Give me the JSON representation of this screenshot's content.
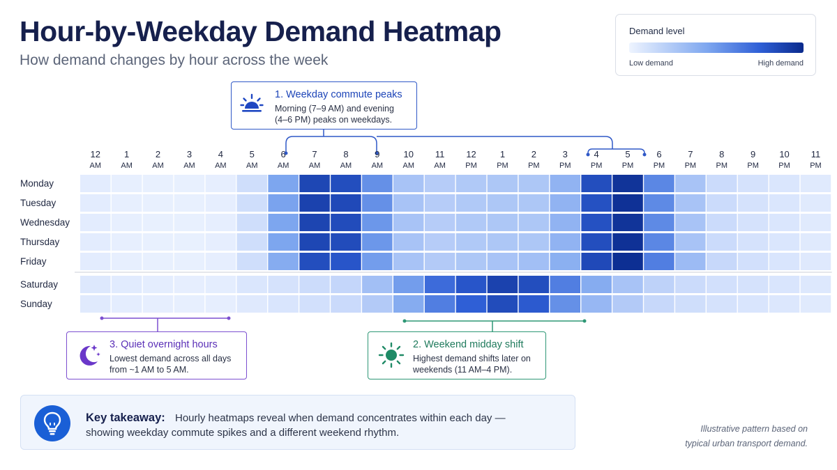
{
  "title": "Hour-by-Weekday Demand Heatmap",
  "subtitle": "How demand changes by hour across the week",
  "legend": {
    "title": "Demand level",
    "low_label": "Low demand",
    "high_label": "High demand",
    "color_low": "#eef4ff",
    "color_high": "#0a2a8c"
  },
  "callouts": {
    "weekday": {
      "title": "1. Weekday commute peaks",
      "line1": "Morning (7–9 AM) and evening",
      "line2": "(4–6 PM) peaks on weekdays.",
      "icon": "sunrise-icon",
      "color": "#2f58c7"
    },
    "weekend": {
      "title": "2. Weekend midday shift",
      "line1": "Highest demand shifts later on",
      "line2": "weekends (11 AM–4 PM).",
      "icon": "sun-icon",
      "color": "#2e9775"
    },
    "overnight": {
      "title": "3. Quiet overnight hours",
      "line1": "Lowest demand across all days",
      "line2": "from ~1 AM to 5 AM.",
      "icon": "moon-icon",
      "color": "#7c4fd0"
    }
  },
  "takeaway": {
    "label": "Key takeaway:",
    "line1": "Hourly heatmaps reveal when demand concentrates within each day —",
    "line2": "showing weekday commute spikes and a different weekend rhythm.",
    "icon": "lightbulb-icon"
  },
  "footnote": {
    "line1": "Illustrative pattern based on",
    "line2": "typical urban transport demand."
  },
  "chart_data": {
    "type": "heatmap",
    "x": [
      [
        "12",
        "AM"
      ],
      [
        "1",
        "AM"
      ],
      [
        "2",
        "AM"
      ],
      [
        "3",
        "AM"
      ],
      [
        "4",
        "AM"
      ],
      [
        "5",
        "AM"
      ],
      [
        "6",
        "AM"
      ],
      [
        "7",
        "AM"
      ],
      [
        "8",
        "AM"
      ],
      [
        "9",
        "AM"
      ],
      [
        "10",
        "AM"
      ],
      [
        "11",
        "AM"
      ],
      [
        "12",
        "PM"
      ],
      [
        "1",
        "PM"
      ],
      [
        "2",
        "PM"
      ],
      [
        "3",
        "PM"
      ],
      [
        "4",
        "PM"
      ],
      [
        "5",
        "PM"
      ],
      [
        "6",
        "PM"
      ],
      [
        "7",
        "PM"
      ],
      [
        "8",
        "PM"
      ],
      [
        "9",
        "PM"
      ],
      [
        "10",
        "PM"
      ],
      [
        "11",
        "PM"
      ]
    ],
    "y": [
      "Monday",
      "Tuesday",
      "Wednesday",
      "Thursday",
      "Friday",
      "Saturday",
      "Sunday"
    ],
    "values": [
      [
        0.08,
        0.05,
        0.04,
        0.04,
        0.06,
        0.22,
        0.55,
        0.88,
        0.85,
        0.62,
        0.4,
        0.35,
        0.37,
        0.38,
        0.38,
        0.48,
        0.85,
        0.96,
        0.65,
        0.4,
        0.25,
        0.18,
        0.14,
        0.1
      ],
      [
        0.08,
        0.05,
        0.04,
        0.04,
        0.06,
        0.22,
        0.56,
        0.9,
        0.87,
        0.62,
        0.4,
        0.35,
        0.37,
        0.38,
        0.38,
        0.48,
        0.84,
        0.97,
        0.64,
        0.4,
        0.25,
        0.18,
        0.14,
        0.1
      ],
      [
        0.08,
        0.05,
        0.04,
        0.04,
        0.06,
        0.22,
        0.55,
        0.89,
        0.86,
        0.6,
        0.4,
        0.35,
        0.37,
        0.38,
        0.38,
        0.48,
        0.84,
        0.96,
        0.64,
        0.4,
        0.25,
        0.18,
        0.14,
        0.1
      ],
      [
        0.08,
        0.05,
        0.04,
        0.04,
        0.06,
        0.22,
        0.55,
        0.88,
        0.86,
        0.6,
        0.4,
        0.35,
        0.37,
        0.38,
        0.38,
        0.48,
        0.85,
        0.97,
        0.65,
        0.4,
        0.25,
        0.18,
        0.14,
        0.1
      ],
      [
        0.08,
        0.05,
        0.04,
        0.04,
        0.06,
        0.22,
        0.52,
        0.85,
        0.82,
        0.58,
        0.4,
        0.36,
        0.38,
        0.4,
        0.42,
        0.5,
        0.87,
        0.98,
        0.68,
        0.44,
        0.28,
        0.2,
        0.15,
        0.11
      ],
      [
        0.12,
        0.09,
        0.07,
        0.06,
        0.07,
        0.14,
        0.18,
        0.24,
        0.3,
        0.42,
        0.58,
        0.74,
        0.82,
        0.9,
        0.85,
        0.68,
        0.52,
        0.4,
        0.32,
        0.25,
        0.2,
        0.18,
        0.15,
        0.12
      ],
      [
        0.1,
        0.07,
        0.06,
        0.05,
        0.06,
        0.11,
        0.15,
        0.2,
        0.26,
        0.36,
        0.52,
        0.68,
        0.78,
        0.86,
        0.8,
        0.62,
        0.46,
        0.36,
        0.28,
        0.22,
        0.18,
        0.15,
        0.13,
        0.1
      ]
    ],
    "value_range": [
      0,
      1
    ],
    "weekday_weekend_separator": true
  }
}
